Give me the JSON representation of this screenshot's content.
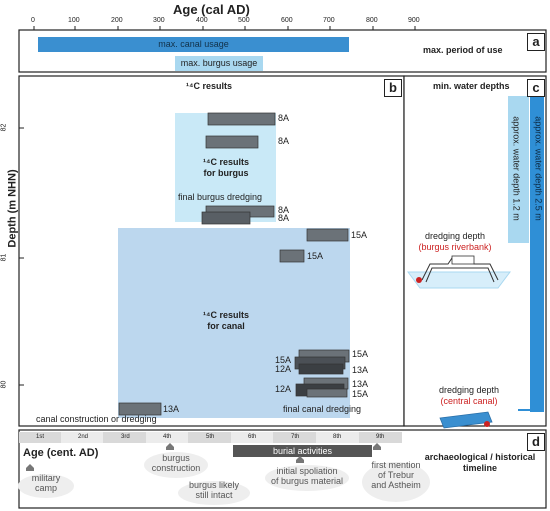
{
  "top_axis": {
    "title": "Age (cal AD)",
    "ticks": [
      "0",
      "100",
      "200",
      "300",
      "400",
      "500",
      "600",
      "700",
      "800",
      "900"
    ]
  },
  "panel_a": {
    "letter": "a",
    "title": "max. period of use",
    "canal_bar": "max. canal usage",
    "burgus_bar": "max. burgus usage"
  },
  "panel_b": {
    "letter": "b",
    "title": "¹⁴C results",
    "burgus_box": "¹⁴C results\nfor burgus",
    "canal_box": "¹⁴C results\nfor canal",
    "final_burgus": "final burgus dredging",
    "final_canal": "final canal dredging",
    "construction": "canal construction or dredging",
    "sample_labels": [
      "8A",
      "8A",
      "8A",
      "8A",
      "15A",
      "15A",
      "15A",
      "15A",
      "12A",
      "13A",
      "13A",
      "12A",
      "15A",
      "13A"
    ]
  },
  "panel_c": {
    "letter": "c",
    "title": "min. water depths",
    "depth_12": "approx. water depth 1.2 m",
    "depth_25": "approx. water depth 2.5 m",
    "dredge_burgus": "dredging depth",
    "dredge_burgus_sub": "(burgus riverbank)",
    "dredge_canal": "dredging depth",
    "dredge_canal_sub": "(central canal)"
  },
  "left_axis": {
    "title": "Depth (m NHN)",
    "ticks": [
      "82",
      "81",
      "80"
    ]
  },
  "panel_d": {
    "letter": "d",
    "title": "archaeological / historical\ntimeline",
    "axis_title": "Age (cent. AD)",
    "centuries": [
      "1st",
      "2nd",
      "3rd",
      "4th",
      "5th",
      "6th",
      "7th",
      "8th",
      "9th"
    ],
    "events": {
      "military_camp": "military\ncamp",
      "burgus_construction": "burgus\nconstruction",
      "burgus_intact": "burgus likely\nstill intact",
      "burial": "burial activities",
      "spoliation": "initial spoliation\nof burgus material",
      "first_mention": "first mention\nof Trebur\nand Astheim"
    }
  },
  "colors": {
    "canal_bar": "#3a8fd0",
    "burgus_bar": "#a9d8f0",
    "burgus_box": "#c9e9f7",
    "canal_box": "#bcd7ee",
    "sample": "#6b7278",
    "sample_dark": "#3b3f43",
    "deep_blue": "#2f8fd6"
  }
}
